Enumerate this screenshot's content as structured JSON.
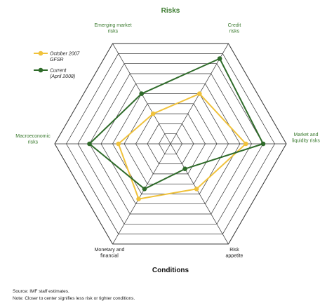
{
  "chart_data": {
    "type": "radar",
    "title": "Risks",
    "bottom_label": "Conditions",
    "axes": [
      "Credit risks",
      "Market and liquidity risks",
      "Risk appetite",
      "Monetary and financial",
      "Macroeconomic risks",
      "Emerging market risks"
    ],
    "axis_label_lines": [
      [
        "Credit",
        "risks"
      ],
      [
        "Market and",
        "liquidity risks"
      ],
      [
        "Risk",
        "appetite"
      ],
      [
        "Monetary and",
        "financial"
      ],
      [
        "Macroeconomic",
        "risks"
      ],
      [
        "Emerging market",
        "risks"
      ]
    ],
    "axis_label_colors": [
      "#3a7a2e",
      "#3a7a2e",
      "#222222",
      "#222222",
      "#3a7a2e",
      "#3a7a2e"
    ],
    "rings": 10,
    "range": [
      0,
      10
    ],
    "legend_position": "top-left",
    "series": [
      {
        "name": "October 2007 GFSR",
        "legend_lines": [
          "October 2007",
          "GFSR"
        ],
        "color": "#f0c23c",
        "values": [
          5,
          6.5,
          4.5,
          5.5,
          4.5,
          3
        ]
      },
      {
        "name": "Current (April 2008)",
        "legend_lines": [
          "Current",
          "(April 2008)"
        ],
        "color": "#2f6b2a",
        "values": [
          8.5,
          8,
          2.5,
          4.5,
          7,
          5
        ]
      }
    ]
  },
  "footnotes": {
    "source": "Source: IMF staff estimates.",
    "note": "Note: Closer to center signifies less risk or tighter conditions."
  }
}
